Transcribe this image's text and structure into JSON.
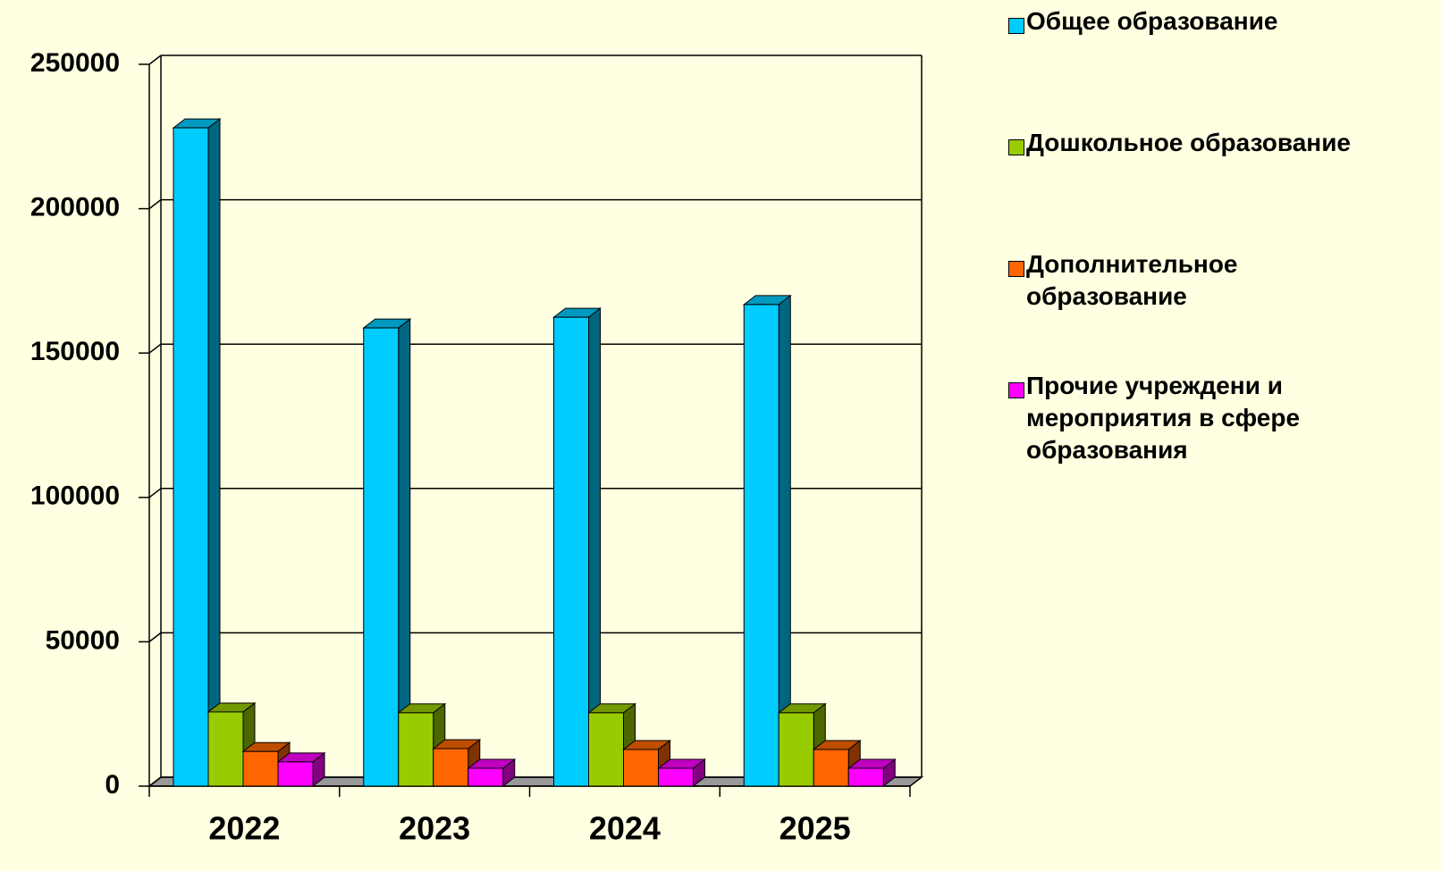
{
  "chart_data": {
    "type": "bar3d",
    "categories": [
      "2022",
      "2023",
      "2024",
      "2025"
    ],
    "series": [
      {
        "name": "Общее образование",
        "color": "#00CCFF",
        "values": [
          228000,
          158700,
          162400,
          166800
        ]
      },
      {
        "name": "Дошкольное образование",
        "color": "#99CC00",
        "values": [
          25700,
          25400,
          25400,
          25400
        ]
      },
      {
        "name": "Дополнительное образование",
        "color": "#FF6600",
        "values": [
          12000,
          13000,
          12700,
          12700
        ]
      },
      {
        "name": "Прочие учреждени и мероприятия в сфере образования",
        "color": "#FF00FF",
        "values": [
          8400,
          6200,
          6200,
          6200
        ]
      }
    ],
    "ylim": [
      0,
      250000
    ],
    "yticks": [
      0,
      50000,
      100000,
      150000,
      200000,
      250000
    ],
    "grid": true,
    "legend": "right"
  }
}
